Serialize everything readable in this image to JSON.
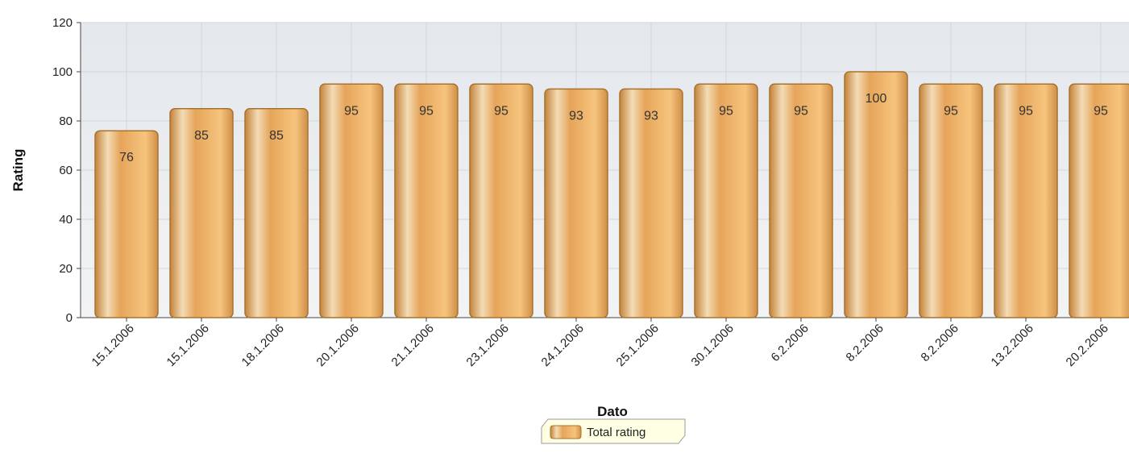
{
  "chart_data": {
    "type": "bar",
    "x_label": "Dato",
    "y_label": "Rating",
    "categories": [
      "15.1.2006",
      "15.1.2006",
      "18.1.2006",
      "20.1.2006",
      "21.1.2006",
      "23.1.2006",
      "24.1.2006",
      "25.1.2006",
      "30.1.2006",
      "6.2.2006",
      "8.2.2006",
      "8.2.2006",
      "13.2.2006",
      "20.2.2006"
    ],
    "series": [
      {
        "name": "Total rating",
        "color": "#e8a858",
        "values": [
          76,
          85,
          85,
          95,
          95,
          95,
          93,
          93,
          95,
          95,
          100,
          95,
          95,
          95
        ]
      }
    ],
    "ylim": [
      0,
      120
    ],
    "yticks": [
      0,
      20,
      40,
      60,
      80,
      100,
      120
    ],
    "grid": true,
    "legend": "bottom"
  }
}
